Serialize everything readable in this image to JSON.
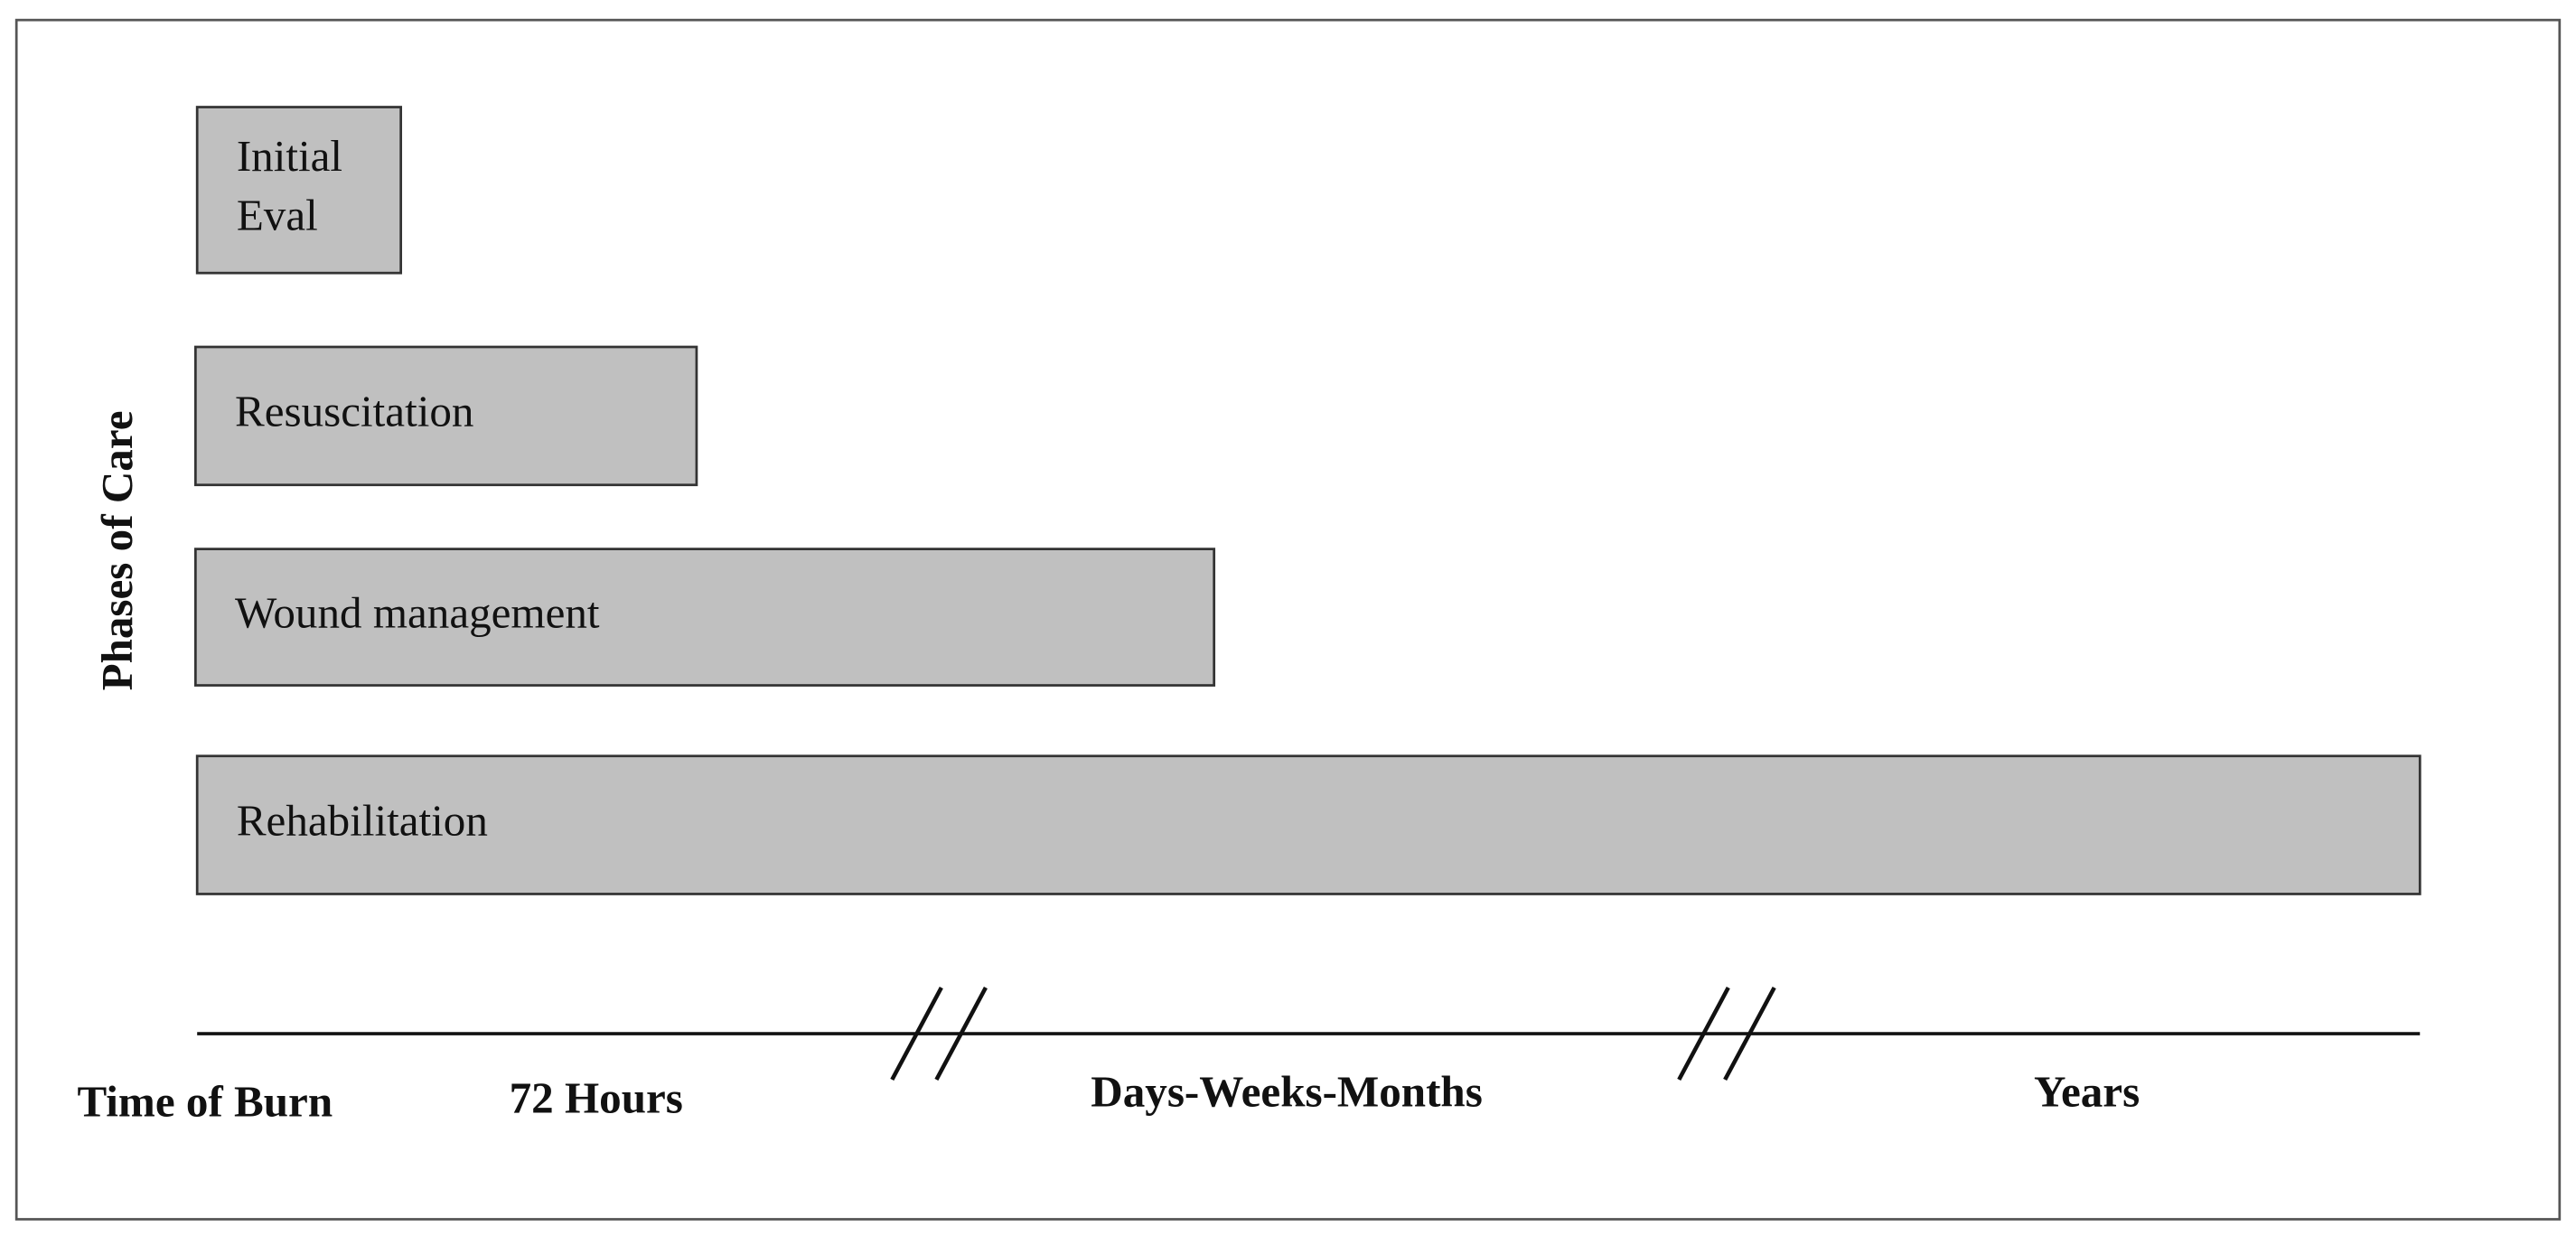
{
  "y_label": "Phases of Care",
  "phases": [
    {
      "lines": [
        "Initial",
        "Eval"
      ]
    },
    {
      "lines": [
        "Resuscitation"
      ]
    },
    {
      "lines": [
        "Wound management"
      ]
    },
    {
      "lines": [
        "Rehabilitation"
      ]
    }
  ],
  "timeline": [
    "Time of Burn",
    "72 Hours",
    "Days-Weeks-Months",
    "Years"
  ]
}
